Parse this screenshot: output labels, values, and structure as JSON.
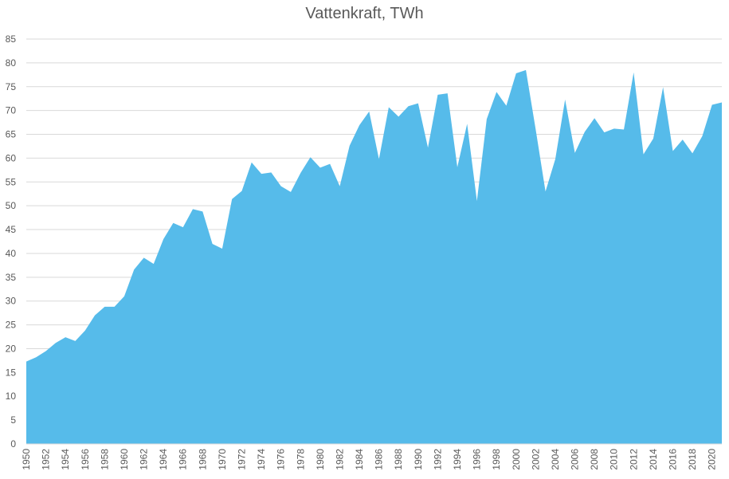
{
  "chart_data": {
    "type": "area",
    "title": "Vattenkraft, TWh",
    "xlabel": "",
    "ylabel": "",
    "ylim": [
      0,
      85
    ],
    "yticks": [
      0,
      5,
      10,
      15,
      20,
      25,
      30,
      35,
      40,
      45,
      50,
      55,
      60,
      65,
      70,
      75,
      80,
      85
    ],
    "grid": true,
    "legend": "none",
    "area_color": "#56BBEA",
    "grid_color": "#D9D9D9",
    "x_tick_labels": [
      "1950",
      "1952",
      "1954",
      "1956",
      "1958",
      "1960",
      "1962",
      "1964",
      "1966",
      "1968",
      "1970",
      "1972",
      "1974",
      "1976",
      "1978",
      "1980",
      "1982",
      "1984",
      "1986",
      "1988",
      "1990",
      "1992",
      "1994",
      "1996",
      "1998",
      "2000",
      "2002",
      "2004",
      "2006",
      "2008",
      "2010",
      "2012",
      "2014",
      "2016",
      "2018",
      "2020"
    ],
    "x": [
      1950,
      1951,
      1952,
      1953,
      1954,
      1955,
      1956,
      1957,
      1958,
      1959,
      1960,
      1961,
      1962,
      1963,
      1964,
      1965,
      1966,
      1967,
      1968,
      1969,
      1970,
      1971,
      1972,
      1973,
      1974,
      1975,
      1976,
      1977,
      1978,
      1979,
      1980,
      1981,
      1982,
      1983,
      1984,
      1985,
      1986,
      1987,
      1988,
      1989,
      1990,
      1991,
      1992,
      1993,
      1994,
      1995,
      1996,
      1997,
      1998,
      1999,
      2000,
      2001,
      2002,
      2003,
      2004,
      2005,
      2006,
      2007,
      2008,
      2009,
      2010,
      2011,
      2012,
      2013,
      2014,
      2015,
      2016,
      2017,
      2018,
      2019,
      2020,
      2021
    ],
    "values": [
      17.3,
      18.2,
      19.5,
      21.2,
      22.4,
      21.6,
      23.8,
      27.0,
      28.8,
      28.8,
      31.0,
      36.6,
      39.1,
      37.8,
      43.0,
      46.4,
      45.5,
      49.3,
      48.8,
      42.0,
      41.0,
      51.4,
      53.1,
      59.1,
      56.7,
      57.0,
      54.1,
      52.9,
      56.9,
      60.2,
      58.0,
      58.8,
      54.1,
      62.6,
      66.9,
      69.8,
      59.8,
      70.7,
      68.7,
      70.9,
      71.5,
      62.2,
      73.3,
      73.6,
      58.1,
      67.2,
      51.0,
      68.2,
      73.9,
      71.0,
      77.8,
      78.5,
      66.0,
      53.0,
      59.8,
      72.3,
      61.1,
      65.5,
      68.4,
      65.4,
      66.2,
      66.0,
      78.0,
      60.8,
      64.1,
      74.9,
      61.5,
      63.9,
      61.0,
      64.6,
      71.2,
      71.7
    ]
  }
}
